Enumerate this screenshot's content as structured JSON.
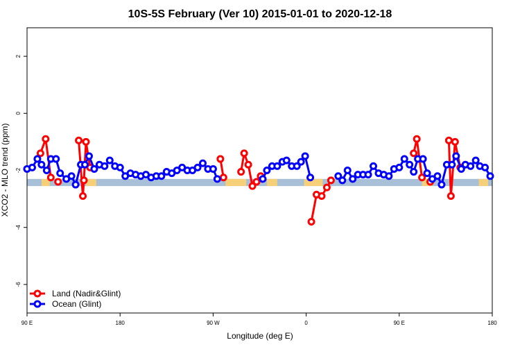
{
  "chart_data": {
    "type": "line",
    "title": "10S-5S February (Ver 10)   2015-01-01 to 2020-12-18",
    "xlabel": "Longitude (deg E)",
    "ylabel": "XCO2 - MLO trend (ppm)",
    "xlim": [
      90,
      540
    ],
    "ylim": [
      -7,
      3
    ],
    "xticks": [
      {
        "value": 90,
        "label": "90 E"
      },
      {
        "value": 180,
        "label": "180"
      },
      {
        "value": 270,
        "label": "90 W"
      },
      {
        "value": 360,
        "label": "0"
      },
      {
        "value": 450,
        "label": "90 E"
      },
      {
        "value": 540,
        "label": "180"
      }
    ],
    "yticks": [
      {
        "value": 2,
        "label": "2"
      },
      {
        "value": 0,
        "label": "0"
      },
      {
        "value": -2,
        "label": "-2"
      },
      {
        "value": -4,
        "label": "-4"
      },
      {
        "value": -6,
        "label": "-6"
      }
    ],
    "legend_position": "bottom-left",
    "colors": {
      "land": "#ff0000",
      "ocean": "#0000ff",
      "land_strip": "#f5d078",
      "ocean_strip": "#a8bfd8"
    },
    "surface_strip": {
      "y_range": [
        -2.55,
        -2.3
      ],
      "land_segments": [
        [
          104,
          112
        ],
        [
          147,
          157
        ],
        [
          282,
          302
        ],
        [
          322,
          332
        ],
        [
          358,
          376
        ],
        [
          472,
          482
        ],
        [
          527,
          536
        ]
      ]
    },
    "series": [
      {
        "name": "Land (Nadir&Glint)",
        "color": "#ff0000",
        "segments": [
          [
            [
              103,
              -1.4
            ],
            [
              108,
              -0.9
            ],
            [
              113,
              -2.25
            ]
          ],
          [
            [
              120,
              -2.4
            ]
          ],
          [
            [
              140,
              -0.95
            ],
            [
              144,
              -2.9
            ],
            [
              145,
              -2.35
            ],
            [
              147,
              -1.0
            ],
            [
              151,
              -1.9
            ]
          ],
          [
            [
              277,
              -1.6
            ],
            [
              280,
              -2.25
            ]
          ],
          [
            [
              297,
              -2.05
            ],
            [
              300,
              -1.4
            ],
            [
              304,
              -1.8
            ],
            [
              308,
              -2.55
            ],
            [
              312,
              -2.4
            ],
            [
              316,
              -2.2
            ]
          ],
          [
            [
              365,
              -3.8
            ],
            [
              370,
              -2.85
            ],
            [
              375,
              -2.9
            ],
            [
              380,
              -2.6
            ],
            [
              384,
              -2.35
            ]
          ],
          [
            [
              464,
              -1.4
            ],
            [
              467,
              -0.9
            ],
            [
              472,
              -2.25
            ]
          ],
          [
            [
              480,
              -2.4
            ]
          ],
          [
            [
              498,
              -0.95
            ],
            [
              500,
              -2.9
            ],
            [
              504,
              -1.0
            ],
            [
              509,
              -1.9
            ]
          ]
        ]
      },
      {
        "name": "Ocean (Glint)",
        "color": "#0000ff",
        "segments": [
          [
            [
              90,
              -1.95
            ],
            [
              95,
              -1.9
            ],
            [
              100,
              -1.6
            ],
            [
              104,
              -1.8
            ],
            [
              109,
              -2.0
            ],
            [
              113,
              -1.6
            ],
            [
              118,
              -1.6
            ],
            [
              122,
              -2.1
            ],
            [
              128,
              -2.3
            ],
            [
              133,
              -2.2
            ],
            [
              137,
              -2.5
            ],
            [
              142,
              -1.8
            ],
            [
              146,
              -1.8
            ],
            [
              150,
              -1.5
            ],
            [
              155,
              -1.95
            ],
            [
              160,
              -1.8
            ],
            [
              165,
              -1.85
            ],
            [
              170,
              -1.65
            ],
            [
              175,
              -1.85
            ],
            [
              180,
              -1.9
            ],
            [
              185,
              -2.2
            ],
            [
              190,
              -2.1
            ],
            [
              195,
              -2.15
            ],
            [
              200,
              -2.2
            ],
            [
              205,
              -2.15
            ],
            [
              210,
              -2.25
            ],
            [
              215,
              -2.2
            ],
            [
              220,
              -2.2
            ],
            [
              225,
              -2.05
            ],
            [
              230,
              -2.1
            ],
            [
              235,
              -2.0
            ],
            [
              240,
              -1.9
            ],
            [
              245,
              -2.0
            ],
            [
              250,
              -2.0
            ],
            [
              255,
              -1.9
            ],
            [
              260,
              -1.75
            ],
            [
              265,
              -1.95
            ],
            [
              270,
              -1.95
            ],
            [
              274,
              -2.3
            ]
          ],
          [
            [
              318,
              -2.3
            ],
            [
              322,
              -2.0
            ],
            [
              327,
              -1.85
            ],
            [
              332,
              -1.85
            ],
            [
              337,
              -1.7
            ],
            [
              341,
              -1.65
            ],
            [
              346,
              -1.85
            ],
            [
              351,
              -1.85
            ],
            [
              355,
              -1.7
            ],
            [
              359,
              -1.5
            ],
            [
              364,
              -2.25
            ]
          ],
          [
            [
              391,
              -2.2
            ],
            [
              395,
              -2.35
            ],
            [
              400,
              -2.0
            ],
            [
              405,
              -2.3
            ],
            [
              410,
              -2.15
            ],
            [
              415,
              -2.15
            ],
            [
              420,
              -2.15
            ],
            [
              425,
              -1.85
            ],
            [
              430,
              -2.1
            ],
            [
              435,
              -2.15
            ],
            [
              440,
              -2.2
            ],
            [
              445,
              -1.95
            ],
            [
              450,
              -1.9
            ],
            [
              455,
              -1.6
            ],
            [
              460,
              -1.8
            ],
            [
              464,
              -2.05
            ],
            [
              468,
              -1.6
            ],
            [
              473,
              -1.6
            ],
            [
              477,
              -2.1
            ],
            [
              482,
              -2.3
            ],
            [
              487,
              -2.2
            ],
            [
              491,
              -2.5
            ],
            [
              496,
              -1.8
            ],
            [
              501,
              -1.8
            ],
            [
              505,
              -1.5
            ],
            [
              510,
              -1.95
            ],
            [
              514,
              -1.8
            ],
            [
              519,
              -1.85
            ],
            [
              524,
              -1.65
            ],
            [
              528,
              -1.85
            ],
            [
              533,
              -1.9
            ],
            [
              538,
              -2.2
            ]
          ]
        ]
      }
    ]
  }
}
